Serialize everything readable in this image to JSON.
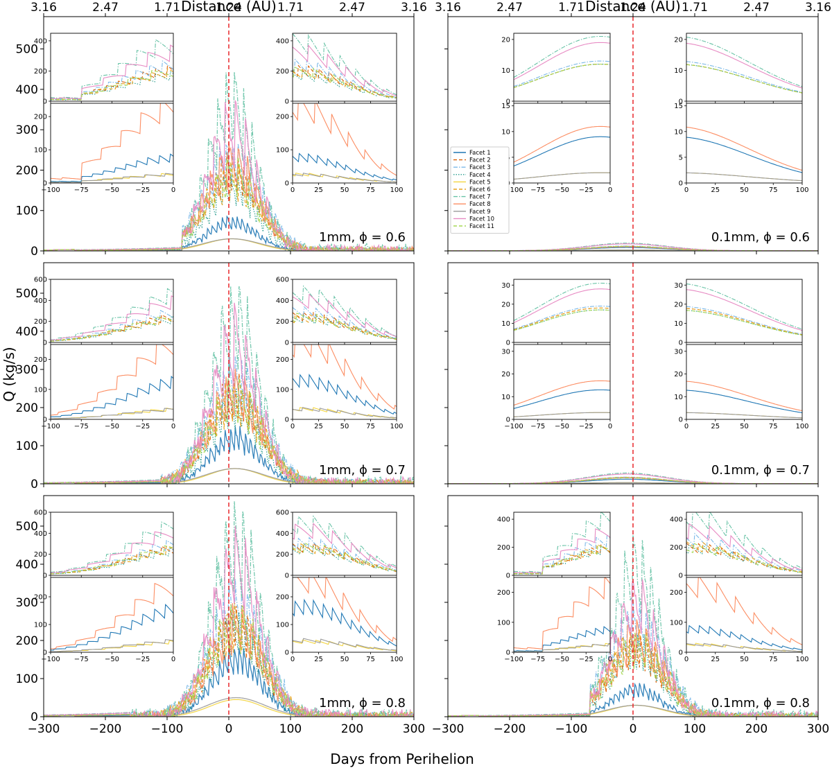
{
  "figure": {
    "top_axis_label": "Distance (AU)",
    "y_axis_label": "Q (kg/s)",
    "x_axis_label": "Days from Perihelion",
    "top_ticks": [
      "3.16",
      "2.47",
      "1.71",
      "1.24",
      "1.71",
      "2.47",
      "3.16"
    ],
    "bottom_ticks": [
      "−300",
      "−200",
      "−100",
      "0",
      "100",
      "200",
      "300"
    ],
    "y_ticks": [
      "0",
      "100",
      "200",
      "300",
      "400",
      "500"
    ],
    "inset_pre_ticks": [
      "−100",
      "−75",
      "−50",
      "−25",
      "0"
    ],
    "inset_post_ticks": [
      "0",
      "25",
      "50",
      "75",
      "100"
    ]
  },
  "legend": [
    {
      "label": "Facet 1",
      "color": "#1f77b4",
      "dash": ""
    },
    {
      "label": "Facet 2",
      "color": "#d95f02",
      "dash": "5,3"
    },
    {
      "label": "Facet 3",
      "color": "#7ab8e8",
      "dash": "6,2,1.5,2"
    },
    {
      "label": "Facet 4",
      "color": "#2a9d8f",
      "dash": "1.5,2"
    },
    {
      "label": "Facet 5",
      "color": "#f2d43f",
      "dash": ""
    },
    {
      "label": "Facet 6",
      "color": "#e7a21b",
      "dash": "5,3"
    },
    {
      "label": "Facet 7",
      "color": "#66c2a5",
      "dash": "6,2,1.5,2"
    },
    {
      "label": "Facet 8",
      "color": "#fc8d62",
      "dash": ""
    },
    {
      "label": "Facet 9",
      "color": "#999999",
      "dash": ""
    },
    {
      "label": "Facet 10",
      "color": "#e78ac3",
      "dash": ""
    },
    {
      "label": "Facet 11",
      "color": "#a6d854",
      "dash": "5,3"
    }
  ],
  "chart_data": [
    {
      "id": "a",
      "type": "line",
      "label": "1mm, ϕ = 0.6",
      "xlim": [
        -300,
        300
      ],
      "ylim": [
        0,
        580
      ],
      "onset_day": -75,
      "peak_day": 5,
      "peaks": {
        "Facet 1": 90,
        "Facet 2": 240,
        "Facet 3": 280,
        "Facet 4": 200,
        "Facet 5": 30,
        "Facet 6": 220,
        "Facet 7": 450,
        "Facet 8": 270,
        "Facet 9": 30,
        "Facet 10": 380,
        "Facet 11": 230
      },
      "insets": [
        {
          "range": "pre",
          "ylim": [
            0,
            450
          ],
          "yticks": [
            0,
            200,
            400
          ]
        },
        {
          "range": "post",
          "ylim": [
            0,
            450
          ],
          "yticks": [
            0,
            200,
            400
          ]
        },
        {
          "range": "pre",
          "ylim": [
            0,
            240
          ],
          "yticks": [
            0,
            100,
            200
          ]
        },
        {
          "range": "post",
          "ylim": [
            0,
            240
          ],
          "yticks": [
            0,
            100,
            200
          ]
        }
      ]
    },
    {
      "id": "b",
      "type": "line",
      "label": "0.1mm, ϕ = 0.6",
      "xlim": [
        -300,
        300
      ],
      "ylim": [
        0,
        580
      ],
      "onset_day": null,
      "peak_day": -10,
      "peaks": {
        "Facet 1": 9,
        "Facet 2": 12,
        "Facet 3": 13,
        "Facet 4": 12,
        "Facet 5": 2,
        "Facet 6": 12,
        "Facet 7": 21,
        "Facet 8": 11,
        "Facet 9": 2,
        "Facet 10": 19,
        "Facet 11": 12
      },
      "insets": [
        {
          "range": "pre",
          "ylim": [
            0,
            22
          ],
          "yticks": [
            0,
            10,
            20
          ]
        },
        {
          "range": "post",
          "ylim": [
            0,
            22
          ],
          "yticks": [
            0,
            10,
            20
          ]
        },
        {
          "range": "pre",
          "ylim": [
            0,
            15.5
          ],
          "yticks": [
            0,
            5,
            10,
            15
          ]
        },
        {
          "range": "post",
          "ylim": [
            0,
            15.5
          ],
          "yticks": [
            0,
            5,
            10,
            15
          ]
        }
      ]
    },
    {
      "id": "c",
      "type": "line",
      "label": "1mm, ϕ = 0.7",
      "xlim": [
        -300,
        300
      ],
      "ylim": [
        0,
        580
      ],
      "onset_day": -110,
      "peak_day": 10,
      "peaks": {
        "Facet 1": 150,
        "Facet 2": 290,
        "Facet 3": 340,
        "Facet 4": 260,
        "Facet 5": 40,
        "Facet 6": 270,
        "Facet 7": 540,
        "Facet 8": 300,
        "Facet 9": 40,
        "Facet 10": 460,
        "Facet 11": 280
      },
      "insets": [
        {
          "range": "pre",
          "ylim": [
            0,
            600
          ],
          "yticks": [
            0,
            200,
            400,
            600
          ]
        },
        {
          "range": "post",
          "ylim": [
            0,
            600
          ],
          "yticks": [
            0,
            200,
            400,
            600
          ]
        },
        {
          "range": "pre",
          "ylim": [
            0,
            250
          ],
          "yticks": [
            0,
            100,
            200
          ]
        },
        {
          "range": "post",
          "ylim": [
            0,
            250
          ],
          "yticks": [
            0,
            100,
            200
          ]
        }
      ]
    },
    {
      "id": "d",
      "type": "line",
      "label": "0.1mm, ϕ = 0.7",
      "xlim": [
        -300,
        300
      ],
      "ylim": [
        0,
        580
      ],
      "onset_day": null,
      "peak_day": -10,
      "peaks": {
        "Facet 1": 13,
        "Facet 2": 18,
        "Facet 3": 19,
        "Facet 4": 17,
        "Facet 5": 3,
        "Facet 6": 18,
        "Facet 7": 31,
        "Facet 8": 17,
        "Facet 9": 3,
        "Facet 10": 28,
        "Facet 11": 17
      },
      "insets": [
        {
          "range": "pre",
          "ylim": [
            0,
            33
          ],
          "yticks": [
            0,
            10,
            20,
            30
          ]
        },
        {
          "range": "post",
          "ylim": [
            0,
            33
          ],
          "yticks": [
            0,
            10,
            20,
            30
          ]
        },
        {
          "range": "pre",
          "ylim": [
            0,
            33
          ],
          "yticks": [
            0,
            10,
            20,
            30
          ]
        },
        {
          "range": "post",
          "ylim": [
            0,
            33
          ],
          "yticks": [
            0,
            10,
            20,
            30
          ]
        }
      ]
    },
    {
      "id": "e",
      "type": "line",
      "label": "1mm, ϕ = 0.8",
      "xlim": [
        -300,
        300
      ],
      "ylim": [
        0,
        580
      ],
      "onset_day": -160,
      "peak_day": 12,
      "peaks": {
        "Facet 1": 190,
        "Facet 2": 310,
        "Facet 3": 360,
        "Facet 4": 280,
        "Facet 5": 45,
        "Facet 6": 300,
        "Facet 7": 570,
        "Facet 8": 300,
        "Facet 9": 50,
        "Facet 10": 500,
        "Facet 11": 310
      },
      "insets": [
        {
          "range": "pre",
          "ylim": [
            0,
            600
          ],
          "yticks": [
            0,
            200,
            400,
            600
          ]
        },
        {
          "range": "post",
          "ylim": [
            0,
            600
          ],
          "yticks": [
            0,
            200,
            400,
            600
          ]
        },
        {
          "range": "pre",
          "ylim": [
            0,
            270
          ],
          "yticks": [
            0,
            100,
            200
          ]
        },
        {
          "range": "post",
          "ylim": [
            0,
            270
          ],
          "yticks": [
            0,
            100,
            200
          ]
        }
      ]
    },
    {
      "id": "f",
      "type": "line",
      "label": "0.1mm, ϕ = 0.8",
      "xlim": [
        -300,
        300
      ],
      "ylim": [
        0,
        580
      ],
      "onset_day": -70,
      "peak_day": 5,
      "peaks": {
        "Facet 1": 90,
        "Facet 2": 230,
        "Facet 3": 300,
        "Facet 4": 220,
        "Facet 5": 30,
        "Facet 6": 240,
        "Facet 7": 480,
        "Facet 8": 260,
        "Facet 9": 30,
        "Facet 10": 370,
        "Facet 11": 230
      },
      "insets": [
        {
          "range": "pre",
          "ylim": [
            0,
            450
          ],
          "yticks": [
            0,
            200,
            400
          ]
        },
        {
          "range": "post",
          "ylim": [
            0,
            450
          ],
          "yticks": [
            0,
            200,
            400
          ]
        },
        {
          "range": "pre",
          "ylim": [
            0,
            250
          ],
          "yticks": [
            0,
            100,
            200
          ]
        },
        {
          "range": "post",
          "ylim": [
            0,
            250
          ],
          "yticks": [
            0,
            100,
            200
          ]
        }
      ]
    }
  ]
}
